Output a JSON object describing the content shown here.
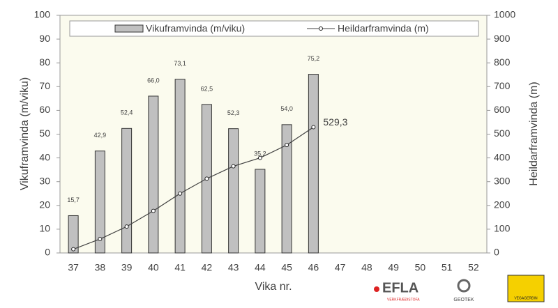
{
  "chart_data": {
    "type": "bar-line",
    "categories": [
      "37",
      "38",
      "39",
      "40",
      "41",
      "42",
      "43",
      "44",
      "45",
      "46",
      "47",
      "48",
      "49",
      "50",
      "51",
      "52"
    ],
    "series": [
      {
        "name": "Vikuframvinda (m/viku)",
        "type": "bar",
        "color": "#c0c0c0",
        "values": [
          15.7,
          42.9,
          52.4,
          66.0,
          73.1,
          62.5,
          52.3,
          35.2,
          54.0,
          75.2,
          null,
          null,
          null,
          null,
          null,
          null
        ],
        "value_labels": [
          "15,7",
          "42,9",
          "52,4",
          "66,0",
          "73,1",
          "62,5",
          "52,3",
          "35,2",
          "54,0",
          "75,2",
          null,
          null,
          null,
          null,
          null,
          null
        ]
      },
      {
        "name": "Heildarframvinda (m)",
        "type": "line",
        "axis": "y2",
        "color": "#404040",
        "values": [
          15.7,
          58.6,
          111.0,
          177.0,
          250.1,
          312.6,
          364.9,
          400.1,
          454.1,
          529.3,
          null,
          null,
          null,
          null,
          null,
          null
        ],
        "value_labels": [
          null,
          null,
          null,
          null,
          null,
          null,
          null,
          null,
          null,
          "529,3",
          null,
          null,
          null,
          null,
          null,
          null
        ]
      }
    ],
    "xlabel": "Vika nr.",
    "ylabel": "Vikuframvinda (m/viku)",
    "y2label": "Heildarframvinda (m)",
    "ylim": [
      0,
      100
    ],
    "yticks": [
      0,
      10,
      20,
      30,
      40,
      50,
      60,
      70,
      80,
      90,
      100
    ],
    "y2lim": [
      0,
      1000
    ],
    "y2ticks": [
      0,
      100,
      200,
      300,
      400,
      500,
      600,
      700,
      800,
      900,
      1000
    ],
    "legend": "top"
  },
  "logos": {
    "efla": "EFLA",
    "efla_sub": "VERKFRÆÐISTOFA",
    "geotek": "GEOTEK",
    "vegagerdin": "VEGAGERÐIN"
  }
}
